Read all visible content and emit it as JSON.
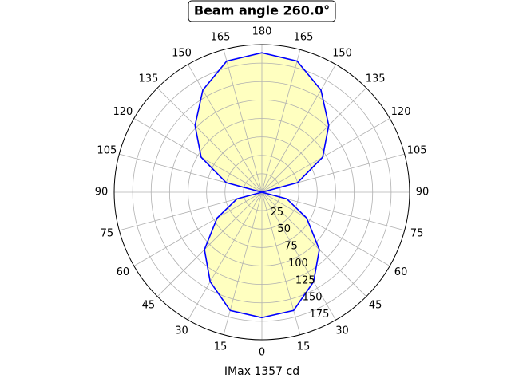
{
  "chart_data": {
    "type": "polar",
    "title": "Beam angle 260.0°",
    "xlabel": "IMax 1357 cd",
    "x": [
      0,
      15,
      30,
      45,
      60,
      75,
      90,
      105,
      120,
      135,
      150,
      165,
      180,
      195,
      210,
      225,
      240,
      255,
      270,
      285,
      300,
      315,
      330,
      345,
      360
    ],
    "series": [
      {
        "color": "#0000ff",
        "fill": "#ffffc0",
        "values": [
          170,
          166,
          140,
          110,
          70,
          35,
          0,
          50,
          95,
          128,
          160,
          184,
          189,
          184,
          160,
          128,
          95,
          50,
          0,
          35,
          70,
          110,
          140,
          166,
          170
        ]
      }
    ],
    "rlim": [
      0,
      200
    ],
    "rticks": [
      25,
      50,
      75,
      100,
      125,
      150,
      175
    ],
    "xticks": [
      0,
      15,
      30,
      45,
      60,
      75,
      90,
      105,
      120,
      135,
      150,
      165,
      180,
      {
        "value": 195,
        "label": "165"
      },
      {
        "value": 210,
        "label": "150"
      },
      {
        "value": 225,
        "label": "135"
      },
      {
        "value": 240,
        "label": "120"
      },
      {
        "value": 255,
        "label": "105"
      },
      {
        "value": 270,
        "label": "90"
      },
      {
        "value": 285,
        "label": "75"
      },
      {
        "value": 300,
        "label": "60"
      },
      {
        "value": 315,
        "label": "45"
      },
      {
        "value": 330,
        "label": "30"
      },
      {
        "value": 345,
        "label": "15"
      }
    ],
    "grid": true
  }
}
